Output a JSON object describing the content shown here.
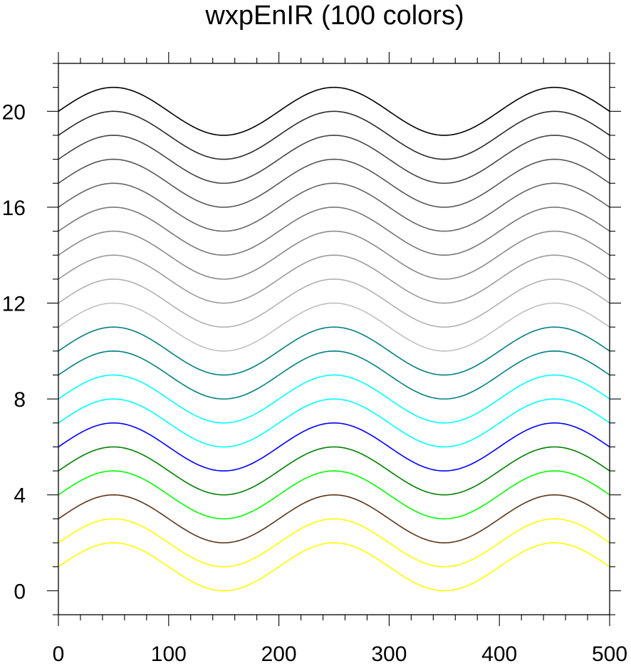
{
  "chart_data": {
    "type": "line",
    "title": "wxpEnIR (100 colors)",
    "xlabel": "",
    "ylabel": "",
    "xlim": [
      0,
      500
    ],
    "ylim": [
      -1,
      22
    ],
    "x_ticks": [
      "0",
      "100",
      "200",
      "300",
      "400",
      "500"
    ],
    "y_ticks": [
      "0",
      "4",
      "8",
      "12",
      "16",
      "20"
    ],
    "x_major_values": [
      0,
      100,
      200,
      300,
      400,
      500
    ],
    "y_major_values": [
      0,
      4,
      8,
      12,
      16,
      20
    ],
    "x_minor_step": 20,
    "y_minor_step": 1,
    "grid": false,
    "curve": {
      "function": "offset + sin(2*pi*x/200)",
      "x_start": 0,
      "x_end": 500,
      "amplitude": 1,
      "period": 200
    },
    "series": [
      {
        "offset": 1,
        "color": "#FFFF00"
      },
      {
        "offset": 2,
        "color": "#FFFF00"
      },
      {
        "offset": 3,
        "color": "#5C3317"
      },
      {
        "offset": 4,
        "color": "#00FF00"
      },
      {
        "offset": 5,
        "color": "#008000"
      },
      {
        "offset": 6,
        "color": "#0000FF"
      },
      {
        "offset": 7,
        "color": "#00FFFF"
      },
      {
        "offset": 8,
        "color": "#00FFFF"
      },
      {
        "offset": 9,
        "color": "#008080"
      },
      {
        "offset": 10,
        "color": "#008080"
      },
      {
        "offset": 11,
        "color": "#C0C0C0"
      },
      {
        "offset": 12,
        "color": "#B0B0B0"
      },
      {
        "offset": 13,
        "color": "#9A9A9A"
      },
      {
        "offset": 14,
        "color": "#8A8A8A"
      },
      {
        "offset": 15,
        "color": "#777777"
      },
      {
        "offset": 16,
        "color": "#666666"
      },
      {
        "offset": 17,
        "color": "#555555"
      },
      {
        "offset": 18,
        "color": "#444444"
      },
      {
        "offset": 19,
        "color": "#2A2A2A"
      },
      {
        "offset": 20,
        "color": "#000000"
      }
    ]
  }
}
